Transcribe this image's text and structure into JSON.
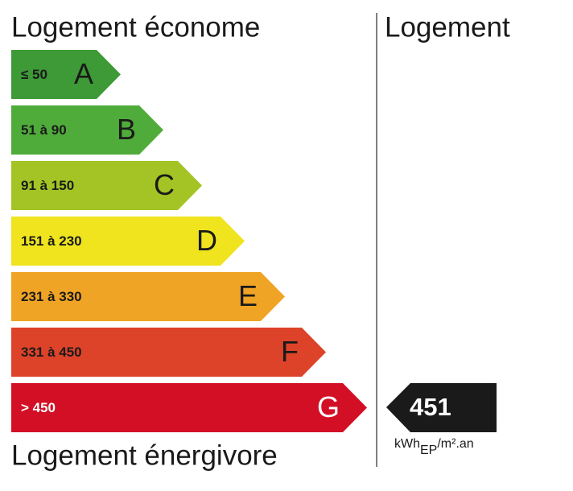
{
  "header": {
    "left_title": "Logement économe",
    "right_title": "Logement",
    "bottom_title": "Logement énergivore"
  },
  "classes": [
    {
      "range": "≤ 50",
      "letter": "A",
      "color": "#3d9a36"
    },
    {
      "range": "51 à 90",
      "letter": "B",
      "color": "#4fab3a"
    },
    {
      "range": "91 à 150",
      "letter": "C",
      "color": "#a3c424"
    },
    {
      "range": "151 à 230",
      "letter": "D",
      "color": "#efe41d"
    },
    {
      "range": "231 à 330",
      "letter": "E",
      "color": "#f0a425"
    },
    {
      "range": "331 à 450",
      "letter": "F",
      "color": "#dd4329"
    },
    {
      "range": "> 450",
      "letter": "G",
      "color": "#d30f25"
    }
  ],
  "indicator": {
    "value": "451",
    "unit": {
      "main": "kWh",
      "sub": "EP",
      "rest": "/m².an"
    }
  }
}
